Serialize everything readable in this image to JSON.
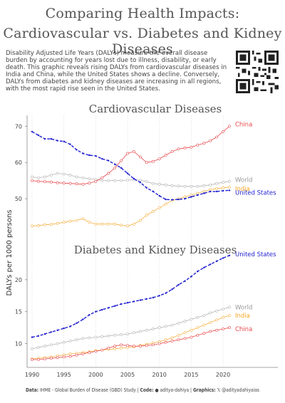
{
  "title": {
    "line1": "Comparing Health Impacts:",
    "line2": "Cardiovascular vs. Diabetes and Kidney Diseases"
  },
  "description": "Disability Adjusted Life Years (DALYs) measure the overall disease burden by accounting for years lost due to illness, disability, or early death. This graphic reveals rising DALYs from cardiovascular diseases in India and China, while the United States shows a decline. Conversely, DALYs from diabetes and kidney diseases are increasing in all regions, with the most rapid rise seen in the United States.",
  "ylabel": "DALYs per 1000 persons",
  "footer": {
    "data_label": "Data:",
    "data_text": "IHME - Global Burden of Disease (GBD) Study",
    "code_label": "Code:",
    "code_text": "aditya-dahiya",
    "graphics_label": "Graphics:",
    "graphics_text": "@adityadahiyaias"
  },
  "colors": {
    "China": "#e8474c",
    "World": "#b3b3b3",
    "India": "#f5b041",
    "United States": "#1f1fd1"
  },
  "chart_data": [
    {
      "type": "line",
      "title": "Cardiovascular Diseases",
      "x": [
        1990,
        1991,
        1992,
        1993,
        1994,
        1995,
        1996,
        1997,
        1998,
        1999,
        2000,
        2001,
        2002,
        2003,
        2004,
        2005,
        2006,
        2007,
        2008,
        2009,
        2010,
        2011,
        2012,
        2013,
        2014,
        2015,
        2016,
        2017,
        2018,
        2019,
        2020,
        2021
      ],
      "yticks": [
        50,
        60,
        70
      ],
      "ylim": [
        40,
        73
      ],
      "series": [
        {
          "name": "China",
          "values": [
            55,
            54.8,
            54.7,
            54.6,
            54.4,
            54.3,
            54.2,
            54.1,
            54,
            54.3,
            54.8,
            55.8,
            57,
            58.5,
            60.5,
            62.5,
            63,
            61.5,
            60,
            60.3,
            61,
            62,
            63,
            63.7,
            64,
            64.2,
            64.8,
            65.3,
            66,
            67,
            68.5,
            70
          ]
        },
        {
          "name": "World",
          "values": [
            56,
            55.8,
            56,
            56.5,
            57,
            56.8,
            56.5,
            56,
            55.8,
            55.5,
            55.3,
            55,
            55,
            55,
            55,
            55.1,
            55.2,
            55.1,
            54.7,
            54.2,
            54,
            53.8,
            53.6,
            53.5,
            53.4,
            53.4,
            53.4,
            53.6,
            53.8,
            54.2,
            54.5,
            54.8
          ]
        },
        {
          "name": "India",
          "values": [
            42.5,
            42.6,
            42.8,
            42.9,
            43.2,
            43.5,
            43.8,
            44,
            44.5,
            43.5,
            43,
            43,
            43,
            43,
            42.7,
            42.5,
            43,
            44,
            45.5,
            46.5,
            47.5,
            48.5,
            49.5,
            50,
            50.5,
            51,
            51.5,
            52,
            52.5,
            52.8,
            53,
            53.2
          ]
        },
        {
          "name": "United States",
          "values": [
            68.5,
            67.5,
            66.5,
            66.5,
            66,
            65.8,
            65,
            63.5,
            62.5,
            62,
            61.8,
            61,
            60.5,
            59.5,
            58.5,
            57,
            55.5,
            54.5,
            53,
            52,
            50.8,
            49.8,
            49.7,
            49.8,
            50,
            50.5,
            51,
            51.5,
            52,
            52,
            52.2,
            52.3
          ]
        }
      ]
    },
    {
      "type": "line",
      "title": "Diabetes and Kidney Diseases",
      "x": [
        1990,
        1991,
        1992,
        1993,
        1994,
        1995,
        1996,
        1997,
        1998,
        1999,
        2000,
        2001,
        2002,
        2003,
        2004,
        2005,
        2006,
        2007,
        2008,
        2009,
        2010,
        2011,
        2012,
        2013,
        2014,
        2015,
        2016,
        2017,
        2018,
        2019,
        2020,
        2021
      ],
      "xticks": [
        1990,
        1995,
        2000,
        2005,
        2010,
        2015,
        2020
      ],
      "yticks": [
        10,
        15,
        20
      ],
      "ylim": [
        6.5,
        25
      ],
      "series": [
        {
          "name": "United States",
          "values": [
            11,
            11.2,
            11.5,
            11.8,
            12.1,
            12.4,
            12.7,
            13.2,
            13.8,
            14.5,
            15,
            15.3,
            15.6,
            15.9,
            16.2,
            16.4,
            16.6,
            16.8,
            17,
            17.2,
            17.5,
            17.9,
            18.5,
            19.2,
            19.8,
            20.5,
            21.3,
            21.9,
            22.4,
            22.9,
            23.4,
            23.8
          ]
        },
        {
          "name": "World",
          "values": [
            9.2,
            9.4,
            9.6,
            9.8,
            10,
            10.2,
            10.4,
            10.6,
            10.8,
            10.9,
            11,
            11.1,
            11.2,
            11.3,
            11.4,
            11.5,
            11.7,
            11.9,
            12.1,
            12.3,
            12.5,
            12.7,
            12.9,
            13.2,
            13.5,
            13.8,
            14.1,
            14.4,
            14.8,
            15.1,
            15.4,
            15.7
          ]
        },
        {
          "name": "India",
          "values": [
            7.6,
            7.7,
            7.8,
            7.9,
            8.1,
            8.2,
            8.4,
            8.5,
            8.6,
            8.7,
            8.9,
            9,
            9.1,
            9.2,
            9.3,
            9.4,
            9.5,
            9.7,
            9.9,
            10.1,
            10.3,
            10.6,
            10.9,
            11.3,
            11.7,
            12.1,
            12.5,
            12.9,
            13.3,
            13.7,
            14.1,
            14.4
          ]
        },
        {
          "name": "China",
          "values": [
            7.5,
            7.5,
            7.6,
            7.7,
            7.8,
            7.9,
            8,
            8.2,
            8.4,
            8.6,
            8.8,
            9,
            9.3,
            9.6,
            9.8,
            9.7,
            9.6,
            9.6,
            9.7,
            9.8,
            10,
            10.2,
            10.4,
            10.6,
            10.8,
            11,
            11.3,
            11.6,
            11.9,
            12.1,
            12.3,
            12.5
          ]
        }
      ]
    }
  ]
}
